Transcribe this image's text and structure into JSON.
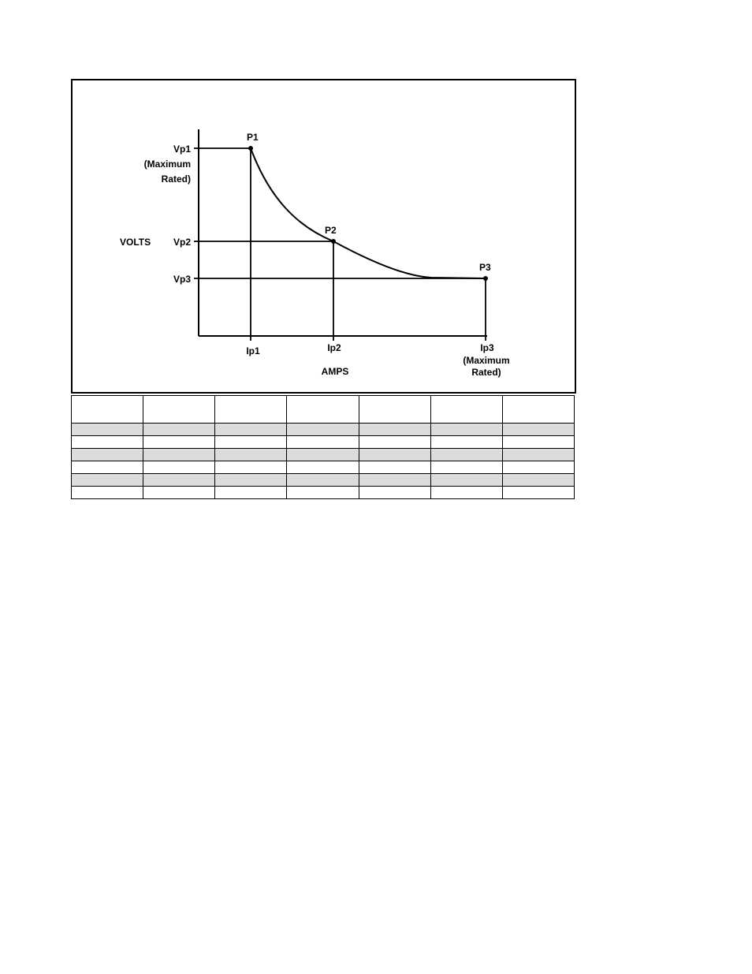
{
  "diagram": {
    "points": [
      {
        "id": "p1",
        "label": "P1"
      },
      {
        "id": "p2",
        "label": "P2"
      },
      {
        "id": "p3",
        "label": "P3"
      }
    ],
    "y_axis": {
      "label": "VOLTS",
      "ticks": [
        "Vp1",
        "Vp2",
        "Vp3"
      ],
      "vp1_note_line1": "(Maximum",
      "vp1_note_line2": "Rated)"
    },
    "x_axis": {
      "label": "AMPS",
      "ticks": [
        "Ip1",
        "Ip2",
        "Ip3"
      ],
      "ip3_note_line1": "(Maximum",
      "ip3_note_line2": "Rated)"
    }
  },
  "table": {
    "columns": 7,
    "body_rows": 6,
    "shade_color": "#dcdcdc"
  }
}
